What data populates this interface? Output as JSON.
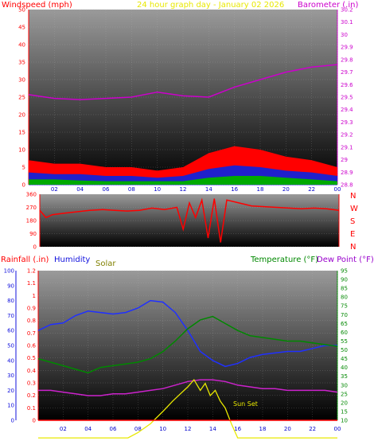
{
  "colors": {
    "red": "#ff0000",
    "magenta": "#cc00cc",
    "yellow": "#e8e800",
    "blue": "#1010dd",
    "green": "#008800",
    "olive": "#808000",
    "purple": "#9900cc"
  },
  "header": {
    "windspeed_label": "Windspeed (mph)",
    "title": "24 hour graph day - January 02 2026",
    "barometer_label": "Barometer (.in)"
  },
  "direction_labels": [
    "N",
    "W",
    "S",
    "E",
    "N"
  ],
  "lower_header": {
    "rainfall_label": "Rainfall (.in)",
    "humidity_label": "Humidity",
    "solar_label": "Solar",
    "temperature_label": "Temperature (°F)",
    "dewpoint_label": "Dew Point (°F)"
  },
  "annotation": "Sun Set",
  "chart_data": [
    {
      "type": "line",
      "name": "wind-barometer",
      "x_ticks": [
        "02",
        "04",
        "06",
        "08",
        "10",
        "12",
        "14",
        "16",
        "18",
        "20",
        "22",
        "00"
      ],
      "y_left_ticks": [
        "0",
        "5",
        "10",
        "15",
        "20",
        "25",
        "30",
        "35",
        "40",
        "45",
        "50"
      ],
      "y_left_range": [
        0,
        50
      ],
      "y_right_ticks": [
        "28.8",
        "28.9",
        "29",
        "29.1",
        "29.2",
        "29.3",
        "29.4",
        "29.5",
        "29.6",
        "29.7",
        "29.8",
        "29.9",
        "30",
        "30.1",
        "30.2"
      ],
      "y_right_range": [
        28.8,
        30.2
      ],
      "barometer": {
        "x": [
          0,
          2,
          4,
          6,
          8,
          10,
          12,
          14,
          16,
          18,
          20,
          22,
          24
        ],
        "y": [
          29.52,
          29.49,
          29.48,
          29.49,
          29.5,
          29.54,
          29.51,
          29.5,
          29.58,
          29.64,
          29.7,
          29.74,
          29.76
        ]
      },
      "wind_gust": {
        "x": [
          0,
          2,
          4,
          6,
          8,
          10,
          12,
          14,
          16,
          18,
          20,
          22,
          24
        ],
        "y": [
          7,
          6,
          6,
          5,
          5,
          4,
          5,
          9,
          11,
          10,
          8,
          7,
          5
        ]
      },
      "wind_avg": {
        "x": [
          0,
          2,
          4,
          6,
          8,
          10,
          12,
          14,
          16,
          18,
          20,
          22,
          24
        ],
        "y": [
          3.5,
          3,
          3,
          2.5,
          2.5,
          2,
          2.5,
          4.5,
          5.5,
          5,
          4,
          3.5,
          2.5
        ]
      },
      "wind_min": {
        "x": [
          0,
          2,
          4,
          6,
          8,
          10,
          12,
          14,
          16,
          18,
          20,
          22,
          24
        ],
        "y": [
          1.5,
          1.5,
          1.2,
          1,
          1,
          1,
          1,
          2,
          2.5,
          2.5,
          2,
          1.5,
          1
        ]
      }
    },
    {
      "type": "line",
      "name": "wind-direction",
      "y_ticks": [
        "0",
        "90",
        "180",
        "270",
        "360"
      ],
      "y_range": [
        0,
        360
      ],
      "x": [
        0,
        0.5,
        1,
        2,
        3,
        4,
        5,
        6,
        7,
        8,
        9,
        10,
        11,
        11.5,
        12,
        12.5,
        13,
        13.5,
        14,
        14.5,
        15,
        16,
        17,
        18,
        19,
        20,
        21,
        22,
        23,
        24
      ],
      "y": [
        250,
        200,
        220,
        230,
        240,
        250,
        255,
        250,
        245,
        250,
        265,
        255,
        270,
        120,
        300,
        200,
        320,
        60,
        330,
        30,
        320,
        300,
        280,
        275,
        270,
        265,
        260,
        265,
        260,
        250
      ]
    },
    {
      "type": "line",
      "name": "temp-humidity-rain",
      "x_ticks": [
        "02",
        "04",
        "06",
        "08",
        "10",
        "12",
        "14",
        "16",
        "18",
        "20",
        "22",
        "00"
      ],
      "y_left_pct_ticks": [
        "0",
        "10",
        "20",
        "30",
        "40",
        "50",
        "60",
        "70",
        "80",
        "90",
        "100"
      ],
      "y_left_rain_ticks": [
        "0",
        "0.1",
        "0.2",
        "0.3",
        "0.4",
        "0.5",
        "0.6",
        "0.7",
        "0.8",
        "0.9",
        "1",
        "1.1",
        "1.2"
      ],
      "y_right_ticks": [
        "10",
        "15",
        "20",
        "25",
        "30",
        "35",
        "40",
        "45",
        "50",
        "55",
        "60",
        "65",
        "70",
        "75",
        "80",
        "85",
        "90",
        "95"
      ],
      "y_right_range": [
        10,
        95
      ],
      "humidity": {
        "x": [
          0,
          1,
          2,
          3,
          4,
          5,
          6,
          7,
          8,
          9,
          10,
          11,
          12,
          13,
          14,
          15,
          16,
          17,
          18,
          19,
          20,
          21,
          22,
          23,
          24
        ],
        "y": [
          60,
          64,
          65,
          70,
          73,
          72,
          71,
          72,
          75,
          80,
          79,
          72,
          60,
          46,
          40,
          36,
          38,
          42,
          44,
          45,
          46,
          46,
          48,
          50,
          50
        ]
      },
      "temperature": {
        "x": [
          0,
          1,
          2,
          3,
          4,
          5,
          6,
          7,
          8,
          9,
          10,
          11,
          12,
          13,
          14,
          15,
          16,
          17,
          18,
          19,
          20,
          21,
          22,
          23,
          24
        ],
        "y": [
          45,
          43,
          41,
          39,
          37,
          40,
          41,
          42,
          43,
          45,
          49,
          55,
          62,
          67,
          69,
          65,
          61,
          58,
          57,
          56,
          55,
          55,
          54,
          53,
          52
        ]
      },
      "dewpoint": {
        "x": [
          0,
          1,
          2,
          3,
          4,
          5,
          6,
          7,
          8,
          9,
          10,
          11,
          12,
          13,
          14,
          15,
          16,
          17,
          18,
          19,
          20,
          21,
          22,
          23,
          24
        ],
        "y": [
          27,
          27,
          26,
          25,
          24,
          24,
          25,
          25,
          26,
          27,
          28,
          30,
          32,
          33,
          33,
          32,
          30,
          29,
          28,
          28,
          27,
          27,
          27,
          27,
          26
        ]
      },
      "solar": {
        "x": [
          0,
          7.2,
          8,
          9,
          10,
          10.8,
          11.4,
          12,
          12.5,
          13,
          13.4,
          13.8,
          14.2,
          14.6,
          15,
          15.5,
          16,
          24
        ],
        "y": [
          0,
          0,
          3,
          8,
          15,
          21,
          25,
          29,
          33,
          27,
          31,
          24,
          27,
          21,
          17,
          8,
          0,
          0
        ]
      },
      "rainfall": {
        "x": [
          0,
          24
        ],
        "y": [
          0,
          0
        ]
      }
    }
  ]
}
